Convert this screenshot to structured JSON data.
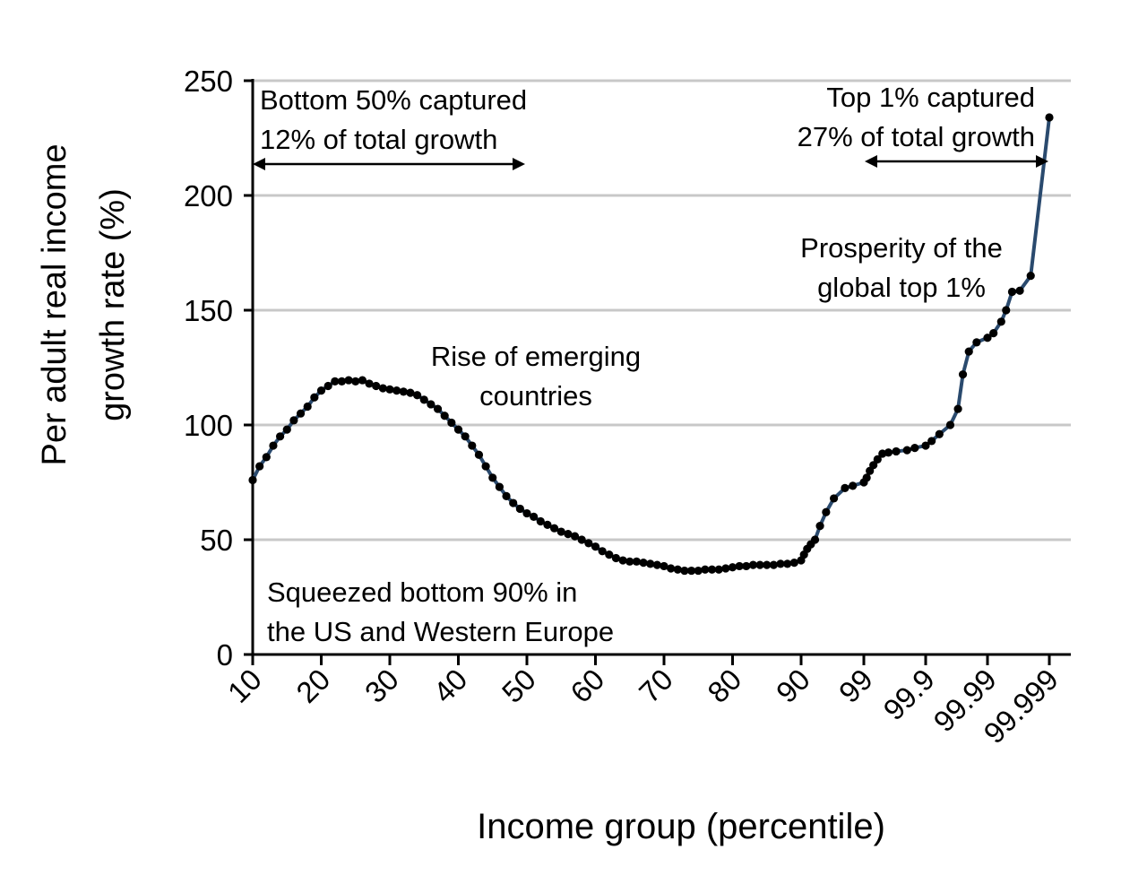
{
  "chart_data": {
    "type": "line",
    "xlabel": "Income group (percentile)",
    "ylabel": [
      "Per adult real income",
      "growth rate (%)"
    ],
    "ylim": [
      0,
      250
    ],
    "yticks": [
      0,
      50,
      100,
      150,
      200,
      250
    ],
    "grid": true,
    "x_tick_labels": [
      "10",
      "20",
      "30",
      "40",
      "50",
      "60",
      "70",
      "80",
      "90",
      "99",
      "99.9",
      "99.99",
      "99.999"
    ],
    "series": [
      {
        "color": "#2a4a6e",
        "marker_color": "#000000",
        "points": [
          [
            10,
            76
          ],
          [
            11,
            82
          ],
          [
            12,
            86
          ],
          [
            13,
            91
          ],
          [
            14,
            95
          ],
          [
            15,
            98
          ],
          [
            16,
            102
          ],
          [
            17,
            105
          ],
          [
            18,
            108
          ],
          [
            19,
            112
          ],
          [
            20,
            115
          ],
          [
            21,
            117
          ],
          [
            22,
            119
          ],
          [
            23,
            119
          ],
          [
            24,
            119.5
          ],
          [
            25,
            119
          ],
          [
            26,
            119.5
          ],
          [
            27,
            118
          ],
          [
            28,
            117
          ],
          [
            29,
            116
          ],
          [
            30,
            115.5
          ],
          [
            31,
            115
          ],
          [
            32,
            114.5
          ],
          [
            33,
            114
          ],
          [
            34,
            113
          ],
          [
            35,
            111
          ],
          [
            36,
            109
          ],
          [
            37,
            107
          ],
          [
            38,
            104
          ],
          [
            39,
            101
          ],
          [
            40,
            98
          ],
          [
            41,
            95
          ],
          [
            42,
            91
          ],
          [
            43,
            87
          ],
          [
            44,
            82
          ],
          [
            45,
            77
          ],
          [
            46,
            73
          ],
          [
            47,
            69
          ],
          [
            48,
            66
          ],
          [
            49,
            63.5
          ],
          [
            50,
            61.5
          ],
          [
            51,
            60
          ],
          [
            52,
            58
          ],
          [
            53,
            56.5
          ],
          [
            54,
            55
          ],
          [
            55,
            53.5
          ],
          [
            56,
            52.5
          ],
          [
            57,
            51.5
          ],
          [
            58,
            50
          ],
          [
            59,
            48.5
          ],
          [
            60,
            47
          ],
          [
            61,
            45
          ],
          [
            62,
            43.5
          ],
          [
            63,
            42
          ],
          [
            64,
            41
          ],
          [
            65,
            40.5
          ],
          [
            66,
            40.5
          ],
          [
            67,
            40
          ],
          [
            68,
            39.5
          ],
          [
            69,
            39
          ],
          [
            70,
            38.5
          ],
          [
            71,
            37.5
          ],
          [
            72,
            37
          ],
          [
            73,
            36.5
          ],
          [
            74,
            36.5
          ],
          [
            75,
            36.5
          ],
          [
            76,
            37
          ],
          [
            77,
            37
          ],
          [
            78,
            37
          ],
          [
            79,
            37.5
          ],
          [
            80,
            38
          ],
          [
            81,
            38.5
          ],
          [
            82,
            38.5
          ],
          [
            83,
            39
          ],
          [
            84,
            39
          ],
          [
            85,
            39
          ],
          [
            86,
            39
          ],
          [
            87,
            39.5
          ],
          [
            88,
            39.5
          ],
          [
            89,
            40
          ],
          [
            90,
            41
          ],
          [
            91,
            43.5
          ],
          [
            92,
            46
          ],
          [
            93,
            48
          ],
          [
            94,
            50
          ],
          [
            95,
            56
          ],
          [
            96,
            62
          ],
          [
            97,
            68
          ],
          [
            98,
            72.5
          ],
          [
            98.5,
            73.5
          ],
          [
            99,
            75
          ],
          [
            99.1,
            77
          ],
          [
            99.2,
            80
          ],
          [
            99.3,
            82.5
          ],
          [
            99.4,
            85
          ],
          [
            99.5,
            87.5
          ],
          [
            99.6,
            88
          ],
          [
            99.7,
            88.5
          ],
          [
            99.8,
            89
          ],
          [
            99.85,
            90
          ],
          [
            99.9,
            91
          ],
          [
            99.92,
            93
          ],
          [
            99.94,
            96
          ],
          [
            99.96,
            100
          ],
          [
            99.97,
            107
          ],
          [
            99.975,
            122
          ],
          [
            99.98,
            132
          ],
          [
            99.985,
            136
          ],
          [
            99.99,
            138
          ],
          [
            99.992,
            140
          ],
          [
            99.994,
            145
          ],
          [
            99.995,
            150
          ],
          [
            99.996,
            158
          ],
          [
            99.997,
            158.5
          ],
          [
            99.998,
            165
          ],
          [
            99.999,
            234
          ]
        ]
      }
    ],
    "annotations": [
      {
        "lines": [
          "Bottom 50% captured",
          "12% of total growth"
        ],
        "arrow": "both",
        "from_x": 10,
        "to_x": 50
      },
      {
        "lines": [
          "Top 1% captured",
          "27% of total growth"
        ],
        "arrow": "both",
        "from_x": 99,
        "to_x": 99.999
      },
      {
        "lines": [
          "Rise of emerging",
          "countries"
        ]
      },
      {
        "lines": [
          "Prosperity of the",
          "global top 1%"
        ]
      },
      {
        "lines": [
          "Squeezed bottom 90% in",
          "the US and Western Europe"
        ]
      }
    ]
  }
}
